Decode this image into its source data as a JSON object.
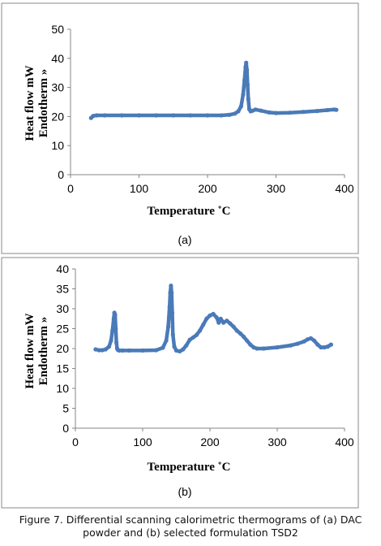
{
  "chart_data": [
    {
      "type": "line",
      "panel_label": "(a)",
      "xlabel": "Temperature ˚C",
      "ylabel_line1": "Heat flow mW",
      "ylabel_line2": "Endotherm »",
      "xlim": [
        0,
        400
      ],
      "ylim": [
        0,
        50
      ],
      "xticks": [
        0,
        100,
        200,
        300,
        400
      ],
      "yticks": [
        0,
        10,
        20,
        30,
        40,
        50
      ],
      "grid": false,
      "color": "#4a7ab8",
      "series": [
        {
          "x": [
            30,
            33,
            38,
            50,
            75,
            100,
            125,
            150,
            175,
            200,
            220,
            232,
            240,
            245,
            249,
            252,
            254,
            255.5,
            256.5,
            257.5,
            258.5,
            259.5,
            261,
            263,
            266,
            270,
            278,
            290,
            300,
            320,
            340,
            360,
            375,
            385,
            388
          ],
          "y": [
            19.5,
            20.2,
            20.4,
            20.4,
            20.4,
            20.4,
            20.4,
            20.4,
            20.4,
            20.4,
            20.4,
            20.6,
            21.0,
            21.8,
            23.5,
            27.5,
            32.5,
            37.0,
            38.5,
            36.0,
            31.0,
            26.0,
            22.5,
            21.8,
            22.0,
            22.4,
            22.0,
            21.4,
            21.2,
            21.3,
            21.6,
            21.9,
            22.2,
            22.4,
            22.3
          ]
        }
      ]
    },
    {
      "type": "line",
      "panel_label": "(b)",
      "xlabel": "Temperature ˚C",
      "ylabel_line1": "Heat flow mW",
      "ylabel_line2": "Endotherm »",
      "xlim": [
        0,
        400
      ],
      "ylim": [
        0,
        40
      ],
      "xticks": [
        0,
        100,
        200,
        300,
        400
      ],
      "yticks": [
        0,
        5,
        10,
        15,
        20,
        25,
        30,
        35,
        40
      ],
      "grid": false,
      "color": "#4a7ab8",
      "series": [
        {
          "x": [
            30,
            35,
            40,
            45,
            50,
            53,
            55,
            57,
            58,
            59,
            60,
            61,
            62,
            63,
            65,
            70,
            80,
            100,
            120,
            130,
            135,
            138,
            140,
            141,
            142,
            143,
            144,
            145,
            147,
            150,
            155,
            160,
            165,
            170,
            175,
            180,
            185,
            190,
            195,
            200,
            205,
            210,
            213,
            216,
            220,
            225,
            230,
            235,
            240,
            245,
            250,
            255,
            260,
            265,
            270,
            280,
            300,
            320,
            330,
            340,
            345,
            350,
            355,
            360,
            365,
            370,
            375,
            380
          ],
          "y": [
            19.8,
            19.6,
            19.6,
            19.8,
            20.5,
            22.0,
            24.5,
            27.5,
            29.0,
            28.5,
            25.0,
            21.5,
            20.0,
            19.7,
            19.5,
            19.5,
            19.5,
            19.5,
            19.6,
            20.2,
            22.0,
            25.5,
            30.5,
            34.0,
            35.8,
            34.0,
            29.0,
            23.5,
            20.5,
            19.5,
            19.3,
            19.8,
            20.8,
            22.2,
            22.8,
            23.4,
            24.5,
            26.0,
            27.5,
            28.3,
            28.7,
            27.8,
            26.5,
            27.5,
            26.5,
            27.0,
            26.3,
            25.5,
            24.5,
            23.8,
            23.0,
            22.0,
            21.0,
            20.3,
            20.0,
            20.0,
            20.3,
            20.8,
            21.2,
            21.8,
            22.3,
            22.6,
            22.0,
            21.0,
            20.3,
            20.3,
            20.5,
            21.0
          ]
        }
      ]
    }
  ],
  "caption": "Figure 7. Differential scanning calorimetric thermograms of (a) DAC powder and (b) selected formulation TSD2"
}
